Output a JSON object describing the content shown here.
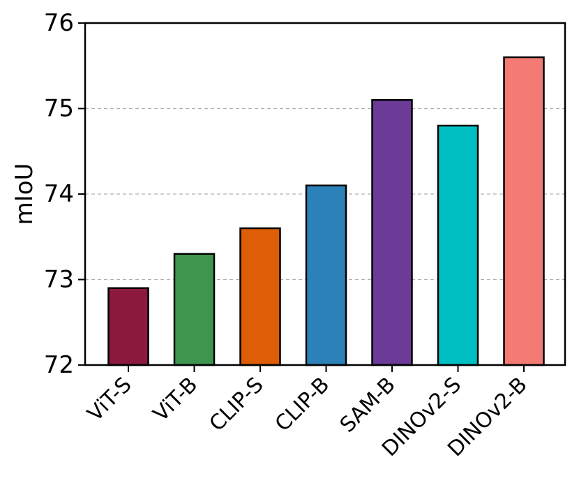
{
  "chart_data": {
    "type": "bar",
    "categories": [
      "ViT-S",
      "ViT-B",
      "CLIP-S",
      "CLIP-B",
      "SAM-B",
      "DINOv2-S",
      "DINOv2-B"
    ],
    "values": [
      72.9,
      73.3,
      73.6,
      74.1,
      75.1,
      74.8,
      75.6
    ],
    "colors": [
      "#8b1a3e",
      "#3f9450",
      "#dd5e06",
      "#2c82b8",
      "#6b3b97",
      "#00bfc4",
      "#f47b74"
    ],
    "ylabel": "mIoU",
    "xlabel": "",
    "title": "",
    "ylim": [
      72,
      76
    ],
    "yticks": [
      "72",
      "73",
      "74",
      "75",
      "76"
    ],
    "grid": "horizontal-dashed"
  }
}
